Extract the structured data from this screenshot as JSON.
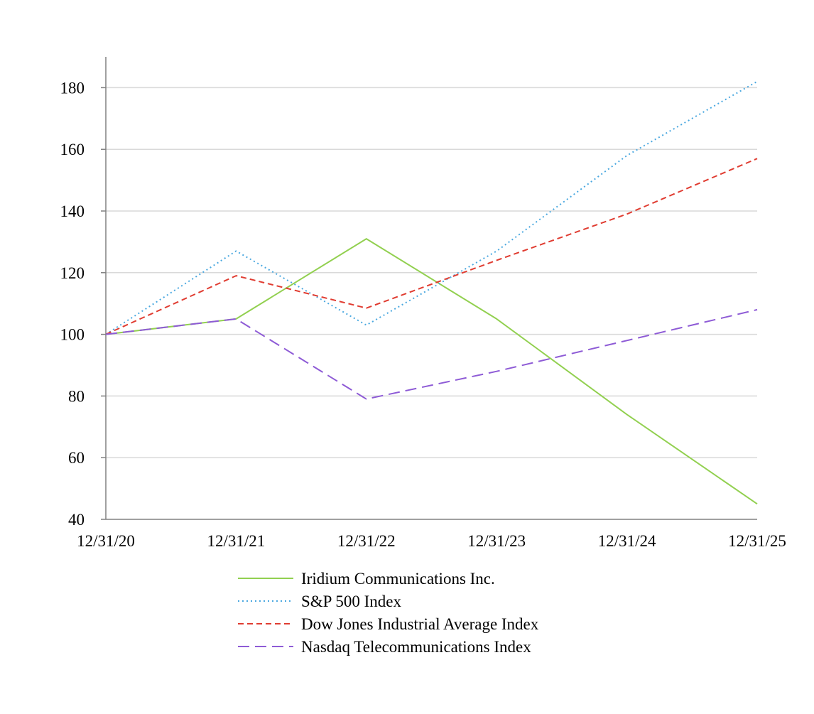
{
  "chart_data": {
    "type": "line",
    "title": "",
    "xlabel": "",
    "ylabel": "",
    "categories": [
      "12/31/20",
      "12/31/21",
      "12/31/22",
      "12/31/23",
      "12/31/24",
      "12/31/25"
    ],
    "ylim": [
      40,
      190
    ],
    "yticks": [
      40,
      60,
      80,
      100,
      120,
      140,
      160,
      180
    ],
    "grid": true,
    "legend_position": "bottom",
    "series": [
      {
        "name": "Iridium Communications Inc.",
        "values": [
          100,
          105,
          131,
          105,
          74,
          45
        ],
        "color": "#92d050",
        "style": "solid"
      },
      {
        "name": "S&P 500 Index",
        "values": [
          100,
          127,
          103,
          127,
          158,
          182
        ],
        "color": "#4aa8e0",
        "style": "dotted"
      },
      {
        "name": "Dow Jones Industrial Average Index",
        "values": [
          100,
          119,
          108.5,
          124,
          139,
          157
        ],
        "color": "#e03c31",
        "style": "dashed"
      },
      {
        "name": "Nasdaq Telecommunications Index",
        "values": [
          100,
          105,
          79,
          88,
          98,
          108
        ],
        "color": "#8e5bd6",
        "style": "longdash"
      }
    ]
  }
}
